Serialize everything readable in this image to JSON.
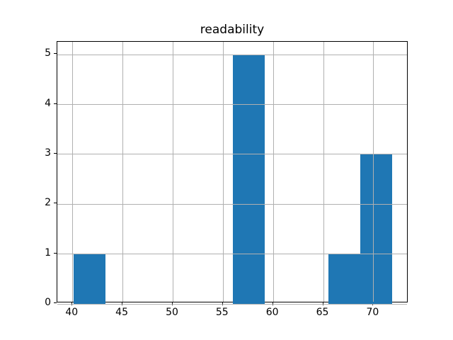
{
  "chart_data": {
    "type": "bar",
    "subtype": "histogram",
    "title": "readability",
    "xlabel": "",
    "ylabel": "",
    "bin_edges": [
      40.1,
      43.28,
      46.46,
      49.64,
      52.82,
      56.0,
      59.18,
      62.36,
      65.54,
      68.72,
      71.9
    ],
    "counts": [
      1,
      0,
      0,
      0,
      0,
      5,
      0,
      0,
      1,
      3
    ],
    "x_ticks": [
      40,
      45,
      50,
      55,
      60,
      65,
      70
    ],
    "y_ticks": [
      0,
      1,
      2,
      3,
      4,
      5
    ],
    "xlim": [
      38.5,
      73.5
    ],
    "ylim": [
      0,
      5.25
    ],
    "grid": true,
    "grid_above_bars": true,
    "legend": "none",
    "colors": {
      "bar": "#1f77b4",
      "grid": "#b0b0b0",
      "spine": "#000000",
      "text": "#000000",
      "background": "#ffffff"
    }
  }
}
